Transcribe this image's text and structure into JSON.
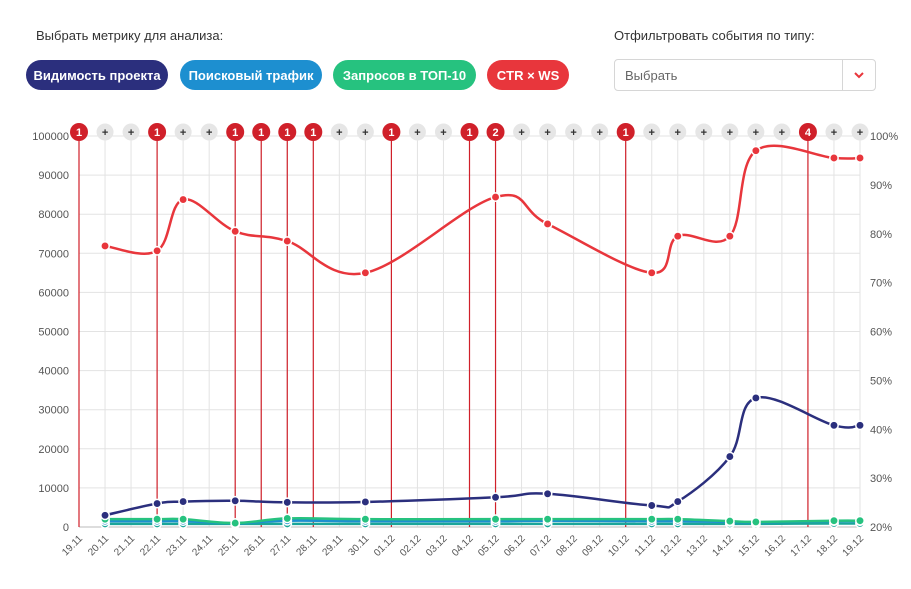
{
  "controls": {
    "metric_label": "Выбрать метрику для анализа:",
    "filter_label": "Отфильтровать события по типу:",
    "metrics": [
      {
        "label": "Видимость проекта",
        "color": "#2b2f7d"
      },
      {
        "label": "Поисковый трафик",
        "color": "#1d8fd0"
      },
      {
        "label": "Запросов в ТОП-10",
        "color": "#26c27f"
      },
      {
        "label": "CTR × WS",
        "color": "#e8363c"
      }
    ],
    "filter_select": {
      "value": "Выбрать",
      "arrow_color": "#e8363c"
    }
  },
  "chart_data": {
    "type": "line",
    "categories": [
      "19.11",
      "20.11",
      "21.11",
      "22.11",
      "23.11",
      "24.11",
      "25.11",
      "26.11",
      "27.11",
      "28.11",
      "29.11",
      "30.11",
      "01.12",
      "02.12",
      "03.12",
      "04.12",
      "05.12",
      "06.12",
      "07.12",
      "08.12",
      "09.12",
      "10.12",
      "11.12",
      "12.12",
      "13.12",
      "14.12",
      "15.12",
      "16.12",
      "17.12",
      "18.12",
      "19.12"
    ],
    "y_left": {
      "min": 0,
      "max": 100000,
      "ticks": [
        0,
        10000,
        20000,
        30000,
        40000,
        50000,
        60000,
        70000,
        80000,
        90000,
        100000
      ]
    },
    "y_right": {
      "min": 20,
      "max": 100,
      "ticks": [
        "20%",
        "30%",
        "40%",
        "50%",
        "60%",
        "70%",
        "80%",
        "90%",
        "100%"
      ]
    },
    "series": [
      {
        "name": "CTR × WS",
        "axis": "right",
        "color": "#e8363c",
        "x": [
          "20.11",
          "22.11",
          "23.11",
          "25.11",
          "27.11",
          "30.11",
          "05.12",
          "07.12",
          "11.12",
          "12.12",
          "14.12",
          "15.12",
          "18.12",
          "19.12"
        ],
        "values": [
          77.5,
          76.5,
          87,
          80.5,
          78.5,
          72,
          87.5,
          82,
          72,
          79.5,
          79.5,
          97,
          95.5,
          95.5
        ]
      },
      {
        "name": "Видимость проекта",
        "axis": "left",
        "color": "#2b2f7d",
        "x": [
          "20.11",
          "22.11",
          "23.11",
          "25.11",
          "27.11",
          "30.11",
          "05.12",
          "07.12",
          "11.12",
          "12.12",
          "14.12",
          "15.12",
          "18.12",
          "19.12"
        ],
        "values": [
          3000,
          6000,
          6500,
          6700,
          6300,
          6400,
          7600,
          8500,
          5500,
          6500,
          18000,
          33000,
          26000,
          26000
        ]
      },
      {
        "name": "Запросов в ТОП-10",
        "axis": "left",
        "color": "#26c27f",
        "x": [
          "20.11",
          "22.11",
          "23.11",
          "25.11",
          "27.11",
          "30.11",
          "05.12",
          "07.12",
          "11.12",
          "12.12",
          "14.12",
          "15.12",
          "18.12",
          "19.12"
        ],
        "values": [
          2000,
          2000,
          2000,
          1000,
          2200,
          2000,
          2000,
          2000,
          2000,
          2000,
          1500,
          1300,
          1600,
          1600
        ]
      },
      {
        "name": "Поисковый трафик",
        "axis": "left",
        "color": "#1d8fd0",
        "x": [
          "20.11",
          "22.11",
          "23.11",
          "25.11",
          "27.11",
          "30.11",
          "05.12",
          "07.12",
          "11.12",
          "12.12",
          "14.12",
          "15.12",
          "18.12",
          "19.12"
        ],
        "values": [
          1500,
          1500,
          1500,
          1000,
          1600,
          1500,
          1500,
          1600,
          1500,
          1500,
          1300,
          1200,
          1500,
          1500
        ]
      },
      {
        "name": "Запросов в ТОП-10 (base)",
        "axis": "left",
        "color": "#1aa59a",
        "x": [
          "20.11",
          "22.11",
          "23.11",
          "25.11",
          "27.11",
          "30.11",
          "05.12",
          "07.12",
          "11.12",
          "12.12",
          "14.12",
          "15.12",
          "18.12",
          "19.12"
        ],
        "values": [
          800,
          800,
          800,
          800,
          800,
          800,
          800,
          800,
          800,
          800,
          800,
          800,
          900,
          900
        ]
      }
    ],
    "events": [
      {
        "date": "19.11",
        "label": "1"
      },
      {
        "date": "22.11",
        "label": "1"
      },
      {
        "date": "25.11",
        "label": "1"
      },
      {
        "date": "26.11",
        "label": "1"
      },
      {
        "date": "27.11",
        "label": "1"
      },
      {
        "date": "28.11",
        "label": "1"
      },
      {
        "date": "01.12",
        "label": "1"
      },
      {
        "date": "04.12",
        "label": "1"
      },
      {
        "date": "05.12",
        "label": "2"
      },
      {
        "date": "10.12",
        "label": "1"
      },
      {
        "date": "17.12",
        "label": "4"
      }
    ],
    "add_marker": "+",
    "event_color": "#d0202a",
    "add_color": "#e6e6e6"
  }
}
